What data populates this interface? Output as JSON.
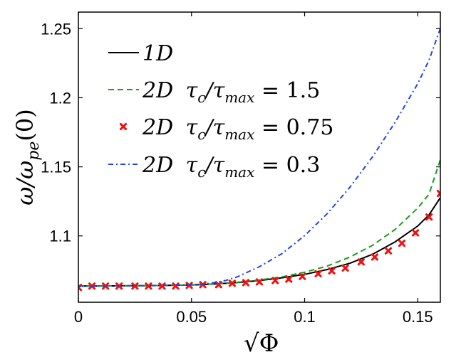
{
  "chart_data": {
    "type": "line",
    "title": "",
    "xlabel": "√Φ",
    "ylabel": "ω/ω_pe(0)",
    "xlim": [
      0,
      0.16
    ],
    "ylim": [
      1.052,
      1.262
    ],
    "xticks": [
      0,
      0.05,
      0.1,
      0.15
    ],
    "xtick_labels": [
      "0",
      "0.05",
      "0.1",
      "0.15"
    ],
    "yticks": [
      1.1,
      1.15,
      1.2,
      1.25
    ],
    "ytick_labels": [
      "1.1",
      "1.15",
      "1.2",
      "1.25"
    ],
    "grid": false,
    "legend_position": "top-left",
    "series": [
      {
        "name": "1D",
        "legend_label": "1D",
        "style": "solid",
        "color": "#000000",
        "x": [
          0,
          0.01,
          0.02,
          0.03,
          0.04,
          0.05,
          0.06,
          0.07,
          0.08,
          0.09,
          0.1,
          0.11,
          0.12,
          0.13,
          0.14,
          0.15,
          0.155,
          0.16
        ],
        "y": [
          1.0637,
          1.0638,
          1.0639,
          1.064,
          1.0642,
          1.0645,
          1.0652,
          1.0662,
          1.0677,
          1.0697,
          1.0722,
          1.0757,
          1.0802,
          1.0867,
          1.0957,
          1.1072,
          1.1152,
          1.1277
        ]
      },
      {
        "name": "2D tau_c/tau_max = 1.5",
        "legend_label": "2D τc/τmax = 1.5",
        "style": "dashed",
        "color": "#1e9a1e",
        "x": [
          0,
          0.02,
          0.04,
          0.05,
          0.06,
          0.07,
          0.08,
          0.09,
          0.1,
          0.11,
          0.12,
          0.13,
          0.14,
          0.15,
          0.155,
          0.16
        ],
        "y": [
          1.0637,
          1.0639,
          1.0642,
          1.0645,
          1.0653,
          1.0664,
          1.0681,
          1.0704,
          1.0737,
          1.0782,
          1.0847,
          1.0932,
          1.1047,
          1.1202,
          1.1302,
          1.1552
        ]
      },
      {
        "name": "2D tau_c/tau_max = 0.75",
        "legend_label": "2D τc/τmax = 0.75",
        "style": "markers",
        "color": "#ee1111",
        "x": [
          0,
          0.006,
          0.012,
          0.018,
          0.025,
          0.031,
          0.037,
          0.043,
          0.049,
          0.055,
          0.062,
          0.068,
          0.074,
          0.08,
          0.087,
          0.093,
          0.099,
          0.106,
          0.112,
          0.118,
          0.125,
          0.131,
          0.137,
          0.143,
          0.149,
          0.155,
          0.16
        ],
        "y": [
          1.0627,
          1.0637,
          1.0637,
          1.0637,
          1.0637,
          1.0637,
          1.0637,
          1.0637,
          1.0642,
          1.0647,
          1.0647,
          1.0657,
          1.0662,
          1.0667,
          1.0677,
          1.0687,
          1.0707,
          1.0727,
          1.0747,
          1.0767,
          1.0812,
          1.0847,
          1.0892,
          1.0947,
          1.1022,
          1.1137,
          1.1307
        ]
      },
      {
        "name": "2D tau_c/tau_max = 0.3",
        "legend_label": "2D τc/τmax = 0.3",
        "style": "dashdot",
        "color": "#2244ee",
        "x": [
          0,
          0.02,
          0.04,
          0.05,
          0.055,
          0.06,
          0.065,
          0.07,
          0.08,
          0.09,
          0.1,
          0.11,
          0.12,
          0.13,
          0.14,
          0.15,
          0.155,
          0.16
        ],
        "y": [
          1.0637,
          1.0639,
          1.0643,
          1.0647,
          1.0652,
          1.0662,
          1.0677,
          1.0702,
          1.0777,
          1.0872,
          1.1002,
          1.1162,
          1.1352,
          1.1572,
          1.1822,
          1.2102,
          1.2272,
          1.2502
        ]
      }
    ]
  }
}
